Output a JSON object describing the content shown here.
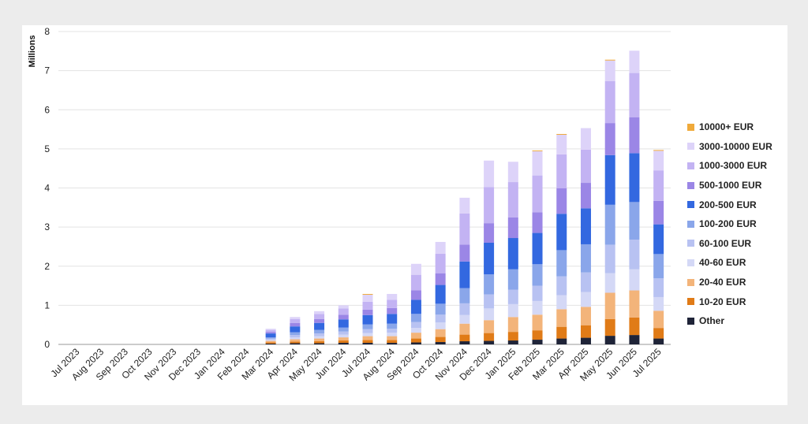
{
  "chart_data": {
    "type": "bar",
    "stacked": true,
    "title": "",
    "xlabel": "",
    "ylabel": "Millions",
    "ylim": [
      0,
      8
    ],
    "yticks": [
      0,
      1,
      2,
      3,
      4,
      5,
      6,
      7,
      8
    ],
    "grid": "horizontal",
    "legend_position": "right",
    "categories": [
      "Jul 2023",
      "Aug 2023",
      "Sep 2023",
      "Oct 2023",
      "Nov 2023",
      "Dec 2023",
      "Jan 2024",
      "Feb 2024",
      "Mar 2024",
      "Apr 2024",
      "May 2024",
      "Jun 2024",
      "Jul 2024",
      "Aug 2024",
      "Sep 2024",
      "Oct 2024",
      "Nov 2024",
      "Dec 2024",
      "Jan 2025",
      "Feb 2025",
      "Mar 2025",
      "Apr 2025",
      "May 2025",
      "Jun 2025",
      "Jul 2025"
    ],
    "series": [
      {
        "name": "Other",
        "color": "#1f2438",
        "values": [
          0,
          0,
          0,
          0,
          0,
          0,
          0,
          0,
          0.02,
          0.03,
          0.03,
          0.04,
          0.04,
          0.04,
          0.05,
          0.06,
          0.08,
          0.09,
          0.1,
          0.12,
          0.15,
          0.17,
          0.22,
          0.24,
          0.15
        ]
      },
      {
        "name": "10-20 EUR",
        "color": "#e07b17",
        "values": [
          0,
          0,
          0,
          0,
          0,
          0,
          0,
          0,
          0.03,
          0.04,
          0.05,
          0.06,
          0.07,
          0.07,
          0.1,
          0.13,
          0.17,
          0.2,
          0.22,
          0.24,
          0.3,
          0.32,
          0.43,
          0.45,
          0.27
        ]
      },
      {
        "name": "20-40 EUR",
        "color": "#f3b47a",
        "values": [
          0,
          0,
          0,
          0,
          0,
          0,
          0,
          0,
          0.04,
          0.06,
          0.07,
          0.08,
          0.1,
          0.1,
          0.15,
          0.2,
          0.28,
          0.33,
          0.38,
          0.4,
          0.45,
          0.47,
          0.67,
          0.69,
          0.44
        ]
      },
      {
        "name": "40-60 EUR",
        "color": "#d4d8f6",
        "values": [
          0,
          0,
          0,
          0,
          0,
          0,
          0,
          0,
          0.03,
          0.05,
          0.06,
          0.07,
          0.08,
          0.09,
          0.12,
          0.17,
          0.22,
          0.3,
          0.33,
          0.35,
          0.36,
          0.38,
          0.5,
          0.54,
          0.35
        ]
      },
      {
        "name": "60-100 EUR",
        "color": "#b8c2f2",
        "values": [
          0,
          0,
          0,
          0,
          0,
          0,
          0,
          0,
          0.03,
          0.06,
          0.07,
          0.08,
          0.1,
          0.1,
          0.15,
          0.2,
          0.3,
          0.36,
          0.37,
          0.39,
          0.48,
          0.5,
          0.73,
          0.76,
          0.48
        ]
      },
      {
        "name": "100-200 EUR",
        "color": "#8aa6ea",
        "values": [
          0,
          0,
          0,
          0,
          0,
          0,
          0,
          0,
          0.03,
          0.07,
          0.09,
          0.1,
          0.12,
          0.13,
          0.21,
          0.28,
          0.39,
          0.51,
          0.52,
          0.55,
          0.67,
          0.72,
          1.02,
          0.96,
          0.62
        ]
      },
      {
        "name": "200-500 EUR",
        "color": "#3368e0",
        "values": [
          0,
          0,
          0,
          0,
          0,
          0,
          0,
          0,
          0.1,
          0.15,
          0.18,
          0.21,
          0.24,
          0.25,
          0.36,
          0.48,
          0.68,
          0.81,
          0.8,
          0.8,
          0.93,
          0.92,
          1.27,
          1.25,
          0.76
        ]
      },
      {
        "name": "500-1000 EUR",
        "color": "#9b86e6",
        "values": [
          0,
          0,
          0,
          0,
          0,
          0,
          0,
          0,
          0.04,
          0.09,
          0.1,
          0.12,
          0.14,
          0.15,
          0.24,
          0.3,
          0.43,
          0.5,
          0.53,
          0.53,
          0.65,
          0.65,
          0.82,
          0.92,
          0.6
        ]
      },
      {
        "name": "1000-3000 EUR",
        "color": "#c3b3f3",
        "values": [
          0,
          0,
          0,
          0,
          0,
          0,
          0,
          0,
          0.05,
          0.1,
          0.13,
          0.16,
          0.2,
          0.21,
          0.4,
          0.5,
          0.8,
          0.92,
          0.9,
          0.94,
          0.87,
          0.85,
          1.07,
          1.13,
          0.78
        ]
      },
      {
        "name": "3000-10000 EUR",
        "color": "#ddd3f9",
        "values": [
          0,
          0,
          0,
          0,
          0,
          0,
          0,
          0,
          0.03,
          0.05,
          0.07,
          0.08,
          0.18,
          0.15,
          0.28,
          0.3,
          0.4,
          0.68,
          0.52,
          0.62,
          0.5,
          0.55,
          0.53,
          0.57,
          0.5
        ]
      },
      {
        "name": "10000+ EUR",
        "color": "#f0aa3a",
        "values": [
          0,
          0,
          0,
          0,
          0,
          0,
          0,
          0,
          0,
          0,
          0,
          0,
          0.02,
          0,
          0,
          0,
          0,
          0,
          0,
          0.02,
          0.02,
          0,
          0.02,
          0,
          0.02
        ]
      }
    ]
  }
}
